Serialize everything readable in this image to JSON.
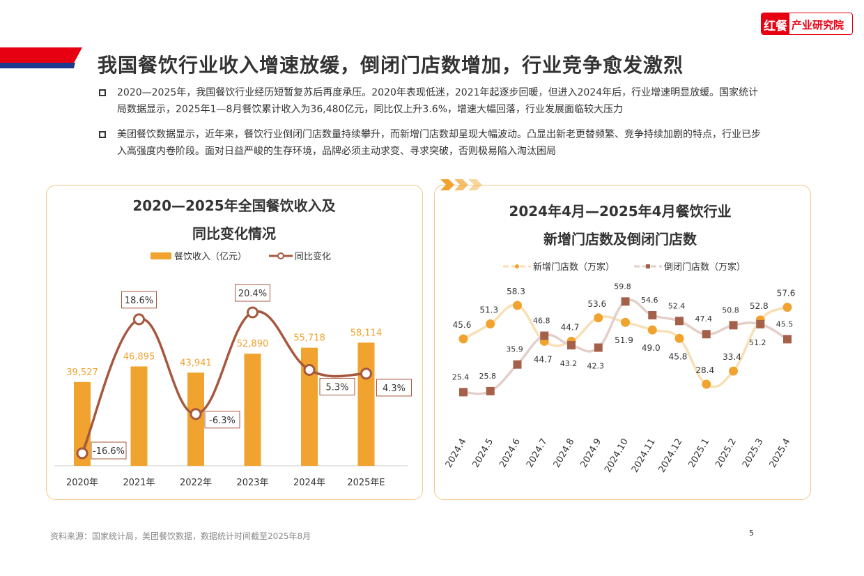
{
  "logo": {
    "part1": "红餐",
    "part2": "产业研究院"
  },
  "title": "我国餐饮行业收入增速放缓，倒闭门店数增加，行业竞争愈发激烈",
  "bullets": [
    "2020—2025年，我国餐饮行业经历短暂复苏后再度承压。2020年表现低迷，2021年起逐步回暖，但进入2024年后，行业增速明显放缓。国家统计局数据显示，2025年1—8月餐饮累计收入为36,480亿元，同比仅上升3.6%，增速大幅回落，行业发展面临较大压力",
    "美团餐饮数据显示，近年来，餐饮行业倒闭门店数量持续攀升，而新增门店数却呈现大幅波动。凸显出新老更替频繁、竞争持续加剧的特点，行业已步入高强度内卷阶段。面对日益严峻的生存环境，品牌必须主动求变、寻求突破，否则极易陷入淘汰困局"
  ],
  "source": "资料来源：国家统计局，美团餐饮数据，数据统计时间截至2025年8月",
  "page": "5",
  "colors": {
    "red": "#e60012",
    "blue": "#1d3a8f",
    "bar": "#f0a32f",
    "line": "#a5583e",
    "closed": "#a5604a",
    "closedLine": "#e3cfc8",
    "newLine": "#f9dfb5"
  },
  "chart_data": [
    {
      "type": "bar",
      "title": [
        "2020—2025年全国餐饮收入及",
        "同比变化情况"
      ],
      "categories": [
        "2020年",
        "2021年",
        "2022年",
        "2023年",
        "2024年",
        "2025年E"
      ],
      "series": [
        {
          "name": "餐饮收入（亿元）",
          "type": "bar",
          "values": [
            39527,
            46895,
            43941,
            52890,
            55718,
            58114
          ],
          "labels": [
            "39,527",
            "46,895",
            "43,941",
            "52,890",
            "55,718",
            "58,114"
          ]
        },
        {
          "name": "同比变化",
          "type": "line",
          "values": [
            -16.6,
            18.6,
            -6.3,
            20.4,
            5.3,
            4.3
          ],
          "labels": [
            "-16.6%",
            "18.6%",
            "-6.3%",
            "20.4%",
            "5.3%",
            "4.3%"
          ]
        }
      ]
    },
    {
      "type": "line",
      "title": [
        "2024年4月—2025年4月餐饮行业",
        "新增门店数及倒闭门店数"
      ],
      "categories": [
        "2024.4",
        "2024.5",
        "2024.6",
        "2024.7",
        "2024.8",
        "2024.9",
        "2024.10",
        "2024.11",
        "2024.12",
        "2025.1",
        "2025.2",
        "2025.3",
        "2025.4"
      ],
      "series": [
        {
          "name": "新增门店数（万家）",
          "values": [
            45.6,
            51.3,
            58.3,
            44.7,
            44.7,
            53.6,
            51.9,
            49.0,
            45.8,
            28.4,
            33.4,
            52.8,
            57.6
          ]
        },
        {
          "name": "倒闭门店数（万家）",
          "values": [
            25.4,
            25.8,
            35.9,
            46.8,
            43.2,
            42.3,
            59.8,
            54.6,
            52.4,
            47.4,
            50.8,
            51.2,
            45.5
          ]
        }
      ]
    }
  ]
}
